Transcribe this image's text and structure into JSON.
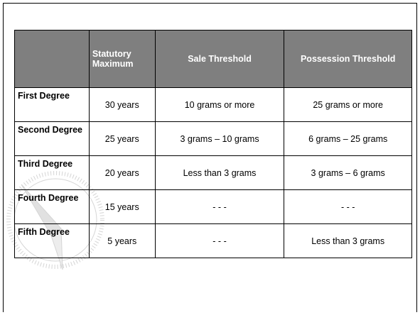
{
  "table": {
    "header": [
      "Statutory Maximum",
      "Sale Threshold",
      "Possession Threshold"
    ],
    "rows": [
      [
        "First Degree",
        "30 years",
        "10 grams or more",
        "25 grams or more"
      ],
      [
        "Second Degree",
        "25 years",
        "3 grams – 10 grams",
        "6 grams – 25 grams"
      ],
      [
        "Third Degree",
        "20 years",
        "Less than 3 grams",
        "3 grams – 6 grams"
      ],
      [
        "Fourth Degree",
        "15 years",
        "- - -",
        "- - -"
      ],
      [
        "Fifth Degree",
        "5 years",
        "- - -",
        "Less than 3 grams"
      ]
    ]
  }
}
